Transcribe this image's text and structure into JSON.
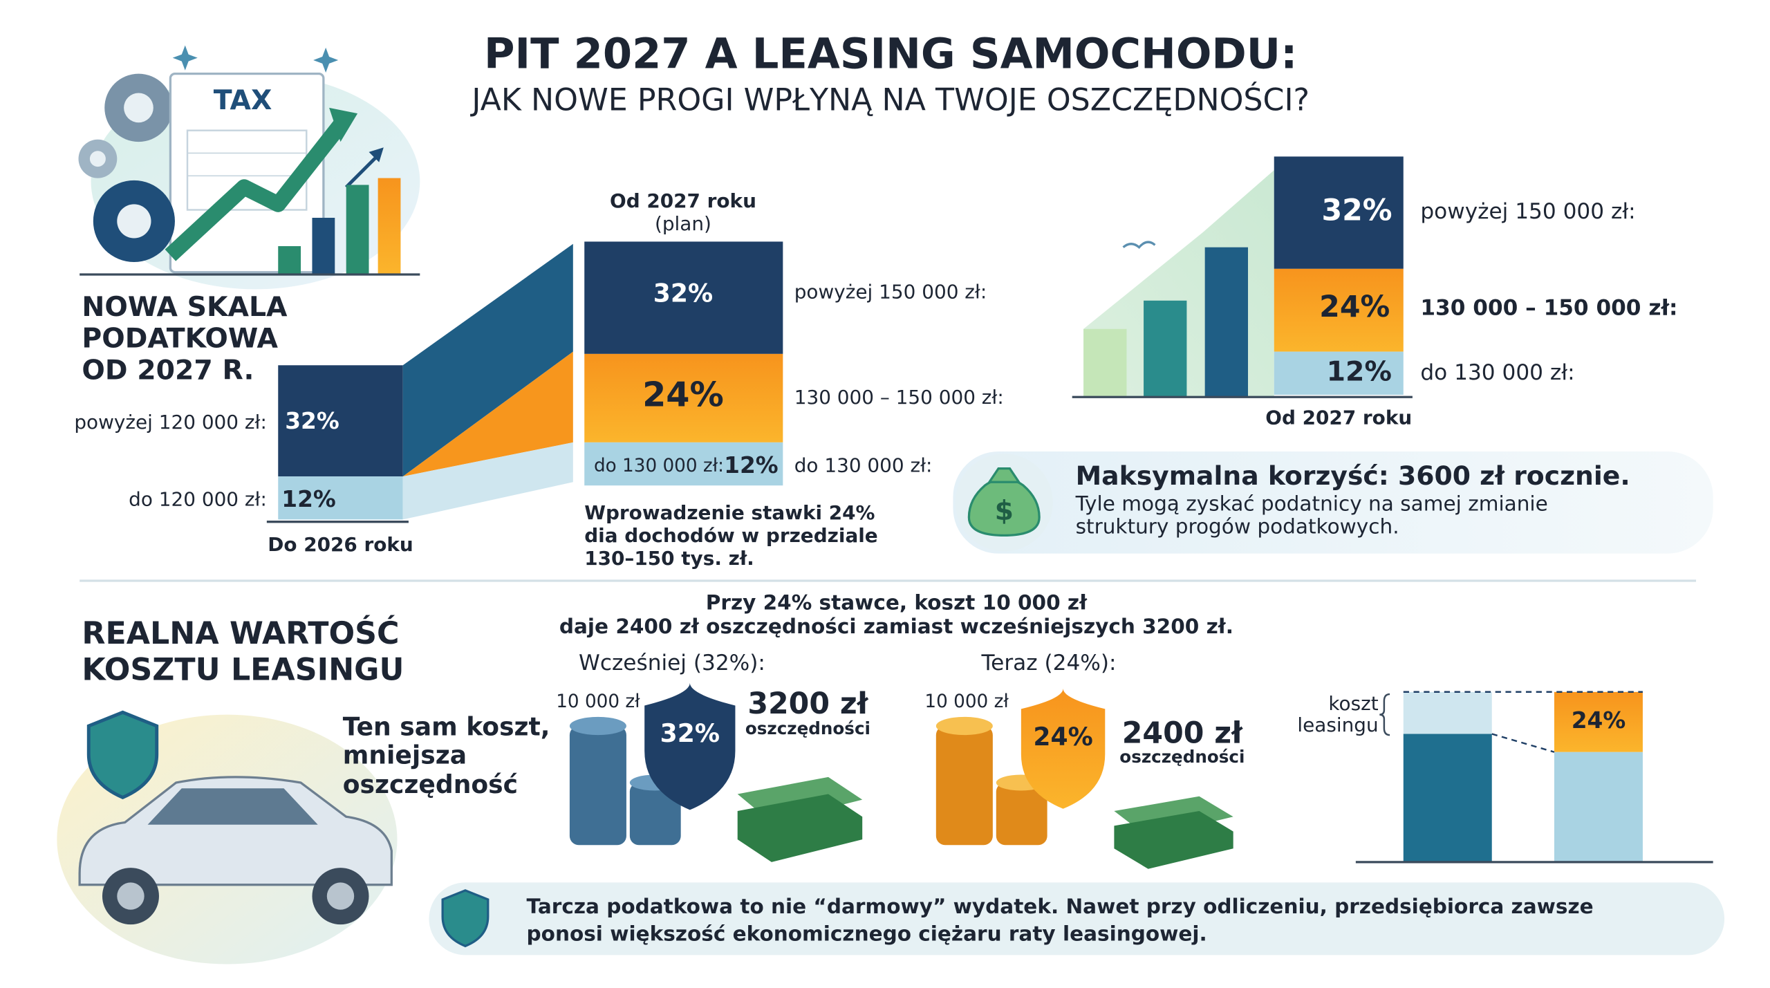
{
  "header": {
    "title": "PIT 2027 A LEASING SAMOCHODU:",
    "subtitle": "JAK NOWE PROGI WPŁYNĄ NA TWOJE OSZCZĘDNOŚCI?"
  },
  "illustration": {
    "document_label": "TAX"
  },
  "scale": {
    "heading_lines": [
      "NOWA SKALA",
      "PODATKOWA",
      "OD 2027 R."
    ],
    "before": {
      "caption": "Do 2026 roku",
      "rows": [
        {
          "label": "powyżej 120 000 zł:",
          "rate": "32%"
        },
        {
          "label": "do 120 000 zł:",
          "rate": "12%"
        }
      ]
    },
    "after": {
      "caption": "Od 2027 roku",
      "note": "(plan)",
      "rows": [
        {
          "rate": "32%",
          "label": "powyżej 150 000 zł:"
        },
        {
          "rate": "24%",
          "label": "130 000 – 150 000 zł:"
        },
        {
          "inner_label": "do 130 000 zł:",
          "rate": "12%",
          "label": "do 130 000 zł:"
        }
      ]
    },
    "note_lines": [
      "Wprowadzenie stawki 24%",
      "dia dochodów w przedziale",
      "130–150 tys. zł."
    ]
  },
  "right_chart": {
    "caption": "Od 2027 roku",
    "rows": [
      {
        "rate": "32%",
        "label": "powyżej 150 000 zł:"
      },
      {
        "rate": "24%",
        "label": "130 000 – 150 000 zł:"
      },
      {
        "rate": "12%",
        "label": "do 130 000 zł:"
      }
    ]
  },
  "benefit": {
    "icon": "$",
    "title": "Maksymalna korzyść: 3600 zł rocznie.",
    "text_lines": [
      "Tyle mogą zyskać podatnicy na samej zmianie",
      "struktury progów podatkowych."
    ]
  },
  "leasing": {
    "heading_lines": [
      "REALNA WARTOŚĆ",
      "KOSZTU LEASINGU"
    ],
    "car_text_lines": [
      "Ten sam koszt,",
      "mniejsza",
      "oszczędność"
    ],
    "intro_lines": [
      "Przy 24% stawce, koszt 10 000 zł",
      "daje 2400 zł oszczędności zamiast wcześniejszych 3200 zł."
    ],
    "before": {
      "label": "Wcześniej (32%):",
      "cost": "10 000 zł",
      "rate": "32%",
      "amount": "3200 zł",
      "amount_caption": "oszczędności"
    },
    "now": {
      "label": "Teraz (24%):",
      "cost": "10 000 zł",
      "rate": "24%",
      "amount": "2400 zł",
      "amount_caption": "oszczędności"
    },
    "compare": {
      "label_lines": [
        "koszt",
        "leasingu"
      ],
      "rate": "24%"
    }
  },
  "footer": {
    "lines": [
      "Tarcza podatkowa to nie “darmowy” wydatek. Nawet przy odliczeniu, przedsiębiorca zawsze",
      "ponosi większość ekonomicznego ciężaru raty leasingowej."
    ]
  }
}
